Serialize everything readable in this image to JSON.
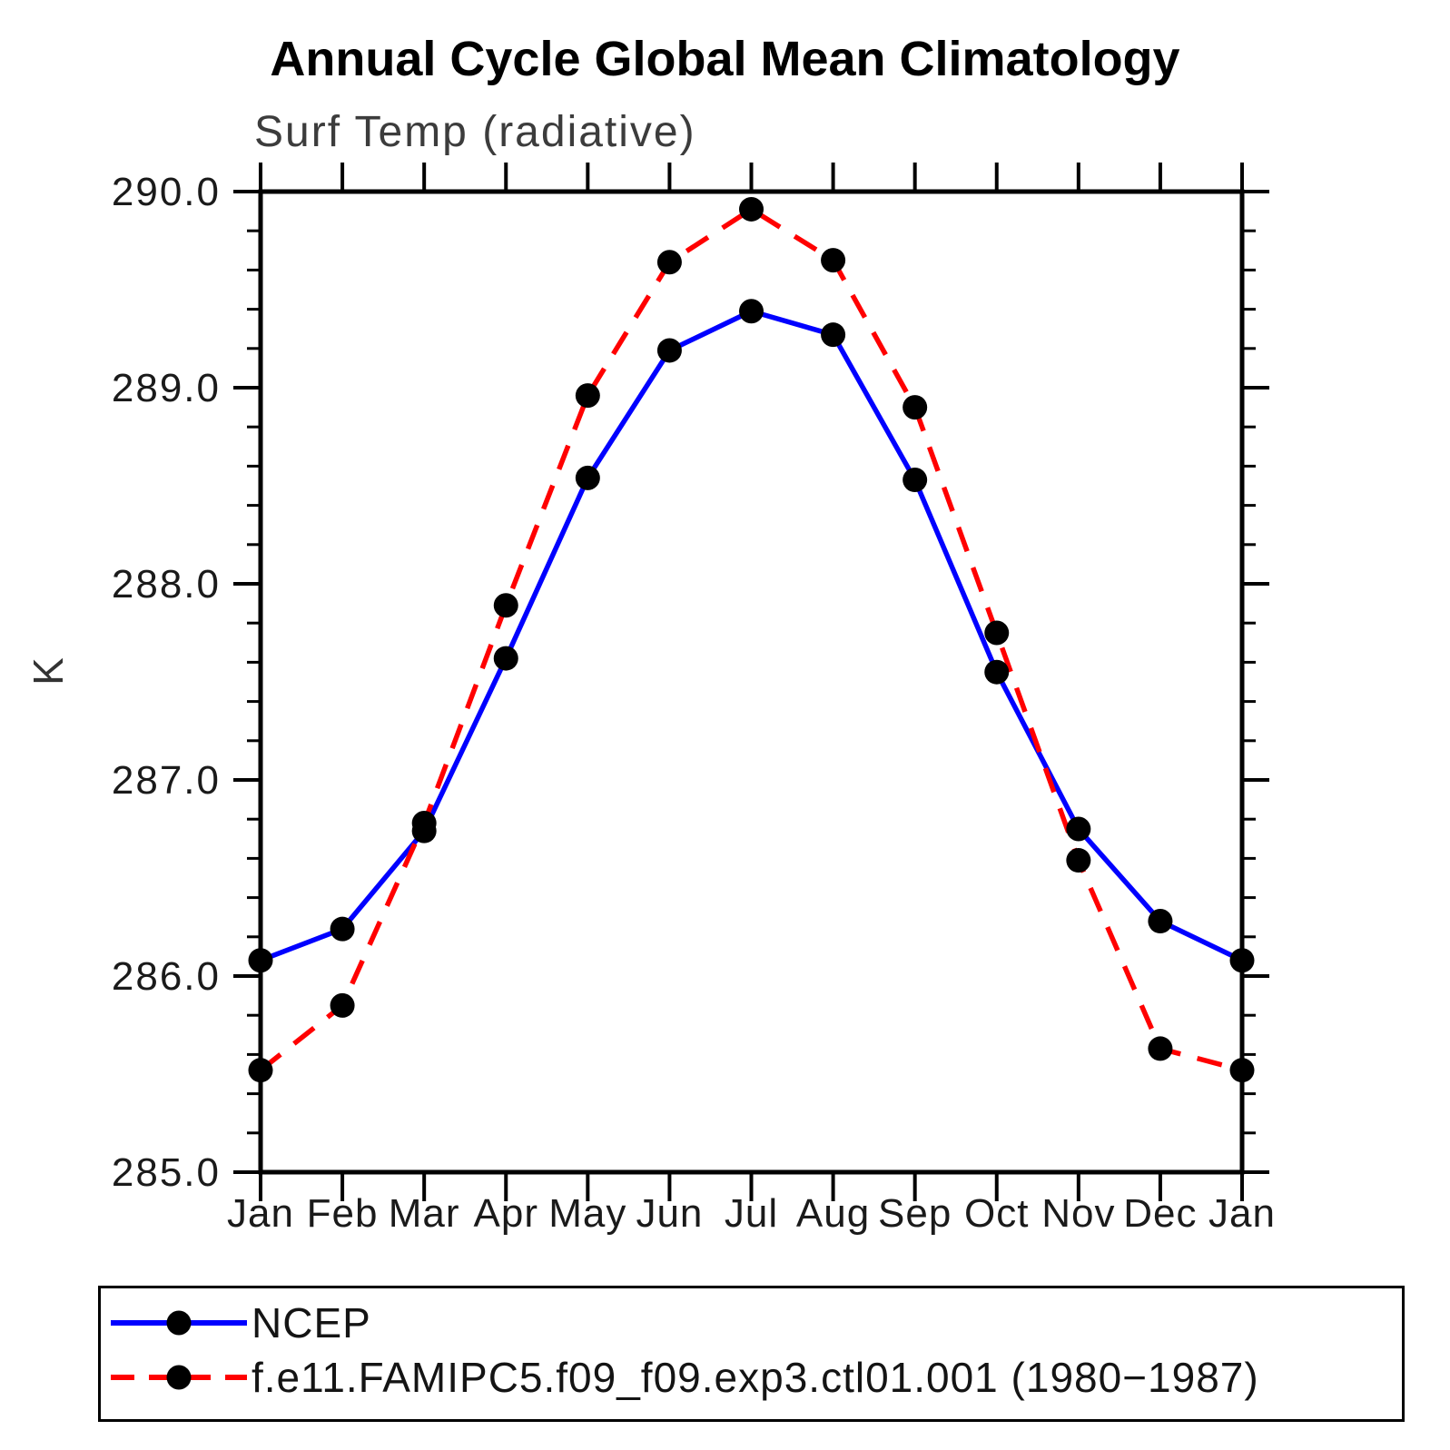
{
  "page": {
    "background": "#ffffff"
  },
  "chart_data": {
    "type": "line",
    "title": "Annual Cycle Global Mean Climatology",
    "subtitle": "Surf Temp (radiative)",
    "ylabel": "K",
    "xlabel": "",
    "categories": [
      "Jan",
      "Feb",
      "Mar",
      "Apr",
      "May",
      "Jun",
      "Jul",
      "Aug",
      "Sep",
      "Oct",
      "Nov",
      "Dec",
      "Jan"
    ],
    "ylim": [
      285.0,
      290.0
    ],
    "ytick_major_step": 1.0,
    "ytick_minor_step": 0.2,
    "ytick_labels": [
      "285.0",
      "286.0",
      "287.0",
      "288.0",
      "289.0",
      "290.0"
    ],
    "grid": false,
    "axis_color": "#000000",
    "tick_label_color": "#1a1a1a",
    "legend_position": "bottom-left-box",
    "series": [
      {
        "name": "NCEP",
        "color": "#0000ff",
        "line_style": "solid",
        "marker": "filled-circle",
        "marker_color": "#000000",
        "values": [
          286.08,
          286.24,
          286.74,
          287.62,
          288.54,
          289.19,
          289.39,
          289.27,
          288.53,
          287.55,
          286.75,
          286.28,
          286.08
        ]
      },
      {
        "name": "f.e11.FAMIPC5.f09_f09.exp3.ctl01.001 (1980−1987)",
        "color": "#ff0000",
        "line_style": "dashed",
        "marker": "filled-circle",
        "marker_color": "#000000",
        "values": [
          285.52,
          285.85,
          286.78,
          287.89,
          288.96,
          289.64,
          289.91,
          289.65,
          288.9,
          287.75,
          286.59,
          285.63,
          285.52
        ]
      }
    ]
  }
}
